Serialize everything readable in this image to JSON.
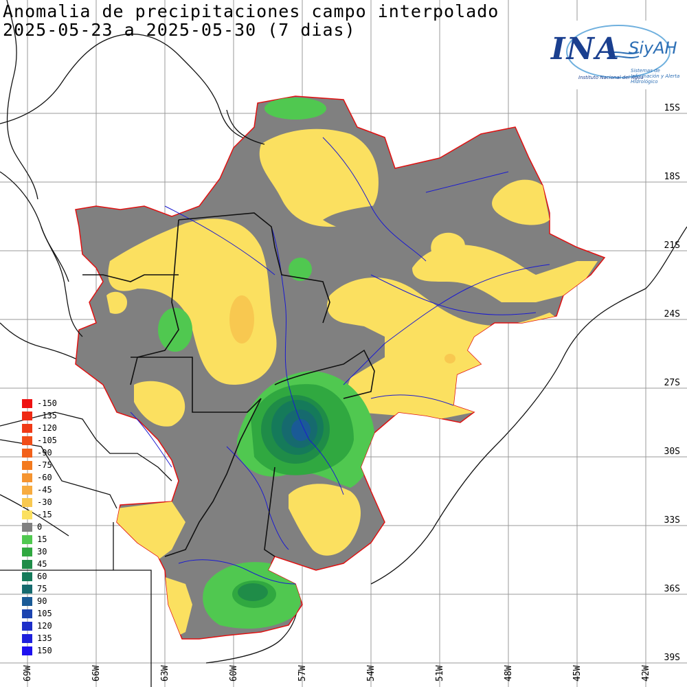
{
  "title": {
    "line1": "Anomalia de precipitaciones campo interpolado",
    "line2": "2025-05-23 a 2025-05-30 (7 dias)"
  },
  "logo": {
    "brand": "INA",
    "product": "SiyAH",
    "institution": "Instituto Nacional del Agua",
    "product_full": "Sistemas de Información y Alerta Hidrológico"
  },
  "lat_labels": [
    "15S",
    "18S",
    "21S",
    "24S",
    "27S",
    "30S",
    "33S",
    "36S",
    "39S"
  ],
  "lon_labels": [
    "69W",
    "66W",
    "63W",
    "60W",
    "57W",
    "54W",
    "51W",
    "48W",
    "45W",
    "42W"
  ],
  "legend": [
    {
      "label": "-150",
      "color": "#ee1111"
    },
    {
      "label": "-135",
      "color": "#ef2a14"
    },
    {
      "label": "-120",
      "color": "#f03a16"
    },
    {
      "label": "-105",
      "color": "#f14d18"
    },
    {
      "label": "-90",
      "color": "#f2601a"
    },
    {
      "label": "-75",
      "color": "#f37a1e"
    },
    {
      "label": "-60",
      "color": "#f59430"
    },
    {
      "label": "-45",
      "color": "#f7ac40"
    },
    {
      "label": "-30",
      "color": "#f8c850"
    },
    {
      "label": "-15",
      "color": "#fbe060"
    },
    {
      "label": "0",
      "color": "#808080"
    },
    {
      "label": "15",
      "color": "#50c850"
    },
    {
      "label": "30",
      "color": "#30a840"
    },
    {
      "label": "45",
      "color": "#1f8c48"
    },
    {
      "label": "60",
      "color": "#157a5a"
    },
    {
      "label": "75",
      "color": "#166a6e"
    },
    {
      "label": "90",
      "color": "#1a5a96"
    },
    {
      "label": "105",
      "color": "#1c44b0"
    },
    {
      "label": "120",
      "color": "#1d2fc8"
    },
    {
      "label": "135",
      "color": "#1e20dc"
    },
    {
      "label": "150",
      "color": "#1e10f0"
    }
  ]
}
